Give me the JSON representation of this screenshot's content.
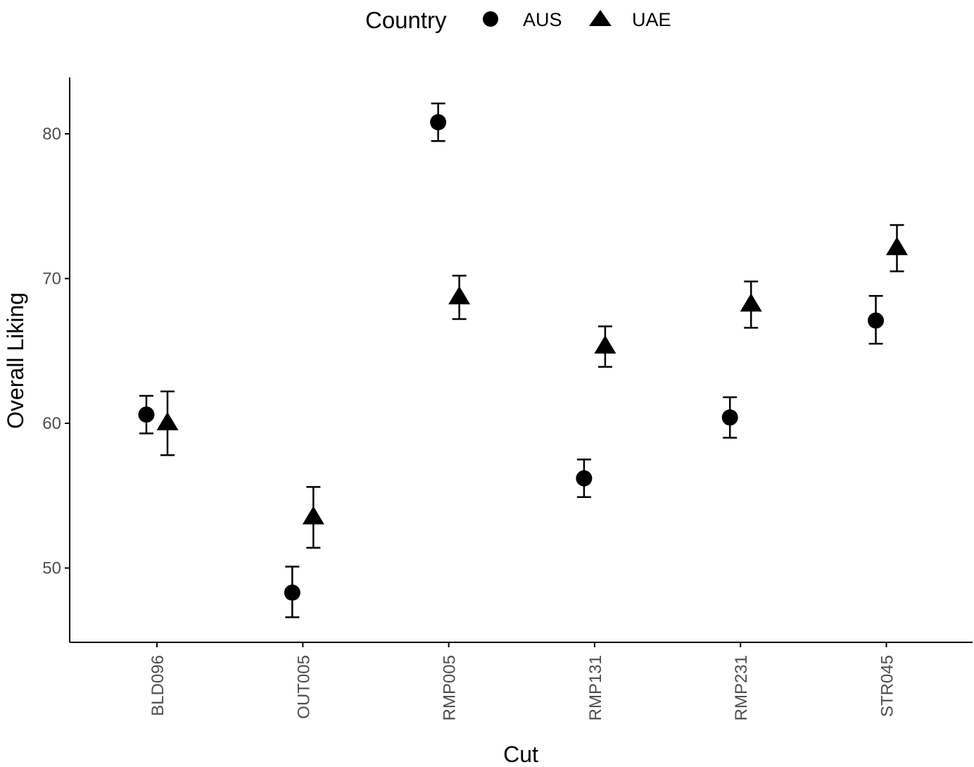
{
  "chart_data": {
    "type": "scatter",
    "xlabel": "Cut",
    "ylabel": "Overall Liking",
    "categories": [
      "BLD096",
      "OUT005",
      "RMP005",
      "RMP131",
      "RMP231",
      "STR045"
    ],
    "y_ticks": [
      "50",
      "60",
      "70",
      "80"
    ],
    "ylim": [
      44.8,
      83.8
    ],
    "legend": {
      "title": "Country",
      "position": "top",
      "entries": [
        {
          "label": "AUS",
          "shape": "circle"
        },
        {
          "label": "UAE",
          "shape": "triangle"
        }
      ]
    },
    "series": [
      {
        "name": "AUS",
        "shape": "circle",
        "values": [
          60.6,
          48.3,
          80.8,
          56.2,
          60.4,
          67.1
        ],
        "error_low": [
          59.3,
          46.6,
          79.5,
          54.9,
          59.0,
          65.5
        ],
        "error_high": [
          61.9,
          50.1,
          82.1,
          57.5,
          61.8,
          68.8
        ]
      },
      {
        "name": "UAE",
        "shape": "triangle",
        "values": [
          60.0,
          53.5,
          68.7,
          65.3,
          68.2,
          72.1
        ],
        "error_low": [
          57.8,
          51.4,
          67.2,
          63.9,
          66.6,
          70.5
        ],
        "error_high": [
          62.2,
          55.6,
          70.2,
          66.7,
          69.8,
          73.7
        ]
      }
    ],
    "grid": false,
    "colors": {
      "points": "#000000",
      "axis": "#000000",
      "tick_text": "#4d4d4d"
    }
  }
}
